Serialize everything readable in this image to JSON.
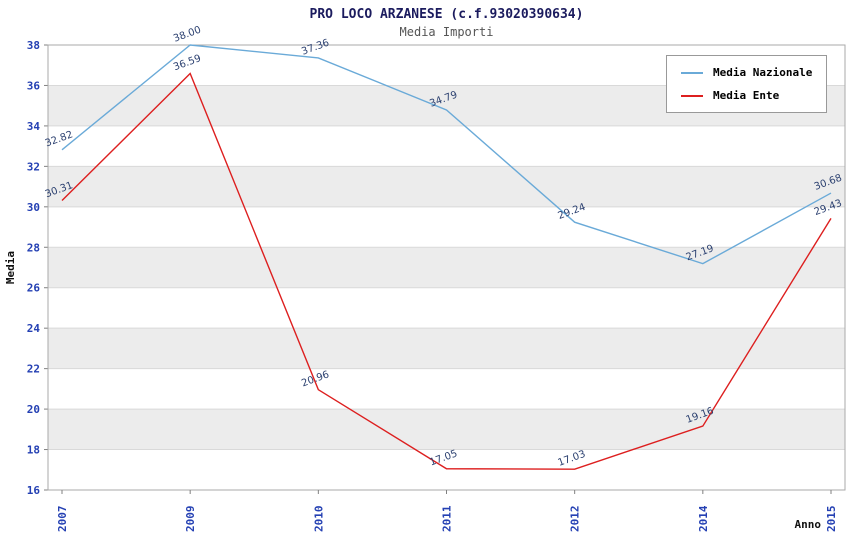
{
  "chart_data": {
    "type": "line",
    "title": "PRO LOCO ARZANESE (c.f.93020390634)",
    "subtitle": "Media Importi",
    "xlabel": "Anno",
    "ylabel": "Media",
    "categories": [
      "2007",
      "2009",
      "2010",
      "2011",
      "2012",
      "2014",
      "2015"
    ],
    "series": [
      {
        "name": "Media Nazionale",
        "color": "#6aaad8",
        "values": [
          32.82,
          38.0,
          37.36,
          34.79,
          29.24,
          27.19,
          30.68
        ],
        "labels": [
          "32.82",
          "38.00",
          "37.36",
          "34.79",
          "29.24",
          "27.19",
          "30.68"
        ]
      },
      {
        "name": "Media Ente",
        "color": "#dd1f1f",
        "values": [
          30.31,
          36.59,
          20.96,
          17.05,
          17.03,
          19.16,
          29.43
        ],
        "labels": [
          "30.31",
          "36.59",
          "20.96",
          "17.05",
          "17.03",
          "19.16",
          "29.43"
        ]
      }
    ],
    "ylim": [
      16,
      38
    ],
    "ytick_step": 2,
    "yticks": [
      16,
      18,
      20,
      22,
      24,
      26,
      28,
      30,
      32,
      34,
      36,
      38
    ],
    "grid": "horizontal-bands",
    "legend_position": "top-right",
    "band_color": "#ececec",
    "grid_color": "#d9d9d9",
    "border_color": "#aaaaaa",
    "tick_color": "#2440b3",
    "label_color": "#2a3f6f",
    "axis_title_color": "#111111"
  }
}
